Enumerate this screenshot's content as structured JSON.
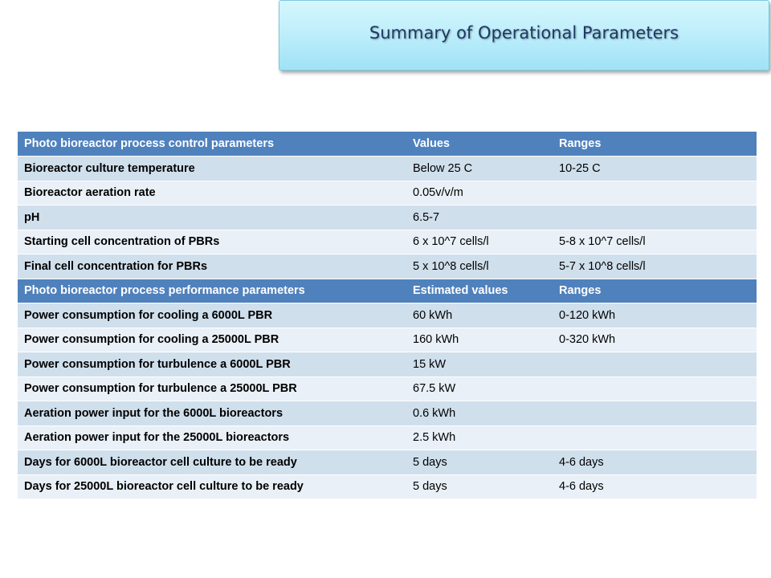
{
  "title": "Summary of Operational Parameters",
  "colors": {
    "header_bg": "#4f81bd",
    "row_dark": "#d0dfec",
    "row_light": "#e9f0f7",
    "title_text": "#1f3864"
  },
  "table": {
    "header1": [
      "Photo bioreactor process control parameters",
      "Values",
      "Ranges"
    ],
    "rows1": [
      [
        "Bioreactor culture temperature",
        "Below 25 C",
        "10-25 C"
      ],
      [
        "Bioreactor aeration rate",
        "0.05v/v/m",
        ""
      ],
      [
        "pH",
        "6.5-7",
        ""
      ],
      [
        "Starting cell concentration of PBRs",
        "6 x 10^7 cells/l",
        "5-8 x 10^7 cells/l"
      ],
      [
        "Final cell concentration for PBRs",
        "5 x 10^8 cells/l",
        "5-7 x 10^8 cells/l"
      ]
    ],
    "header2": [
      "Photo bioreactor process performance parameters",
      "Estimated values",
      "Ranges"
    ],
    "rows2": [
      [
        "Power consumption for cooling a 6000L PBR",
        "60 kWh",
        "0-120 kWh"
      ],
      [
        "Power consumption for cooling a 25000L PBR",
        "160 kWh",
        "0-320 kWh"
      ],
      [
        "Power consumption for  turbulence a 6000L PBR",
        "15 kW",
        ""
      ],
      [
        "Power consumption for turbulence a 25000L PBR",
        "67.5 kW",
        ""
      ],
      [
        "Aeration power input for the 6000L bioreactors",
        "0.6 kWh",
        ""
      ],
      [
        "Aeration power input for the 25000L bioreactors",
        "2.5 kWh",
        ""
      ],
      [
        "Days for 6000L bioreactor cell culture to be ready",
        "5 days",
        "4-6 days"
      ],
      [
        "Days for 25000L bioreactor cell culture to be ready",
        "5 days",
        "4-6 days"
      ]
    ]
  }
}
